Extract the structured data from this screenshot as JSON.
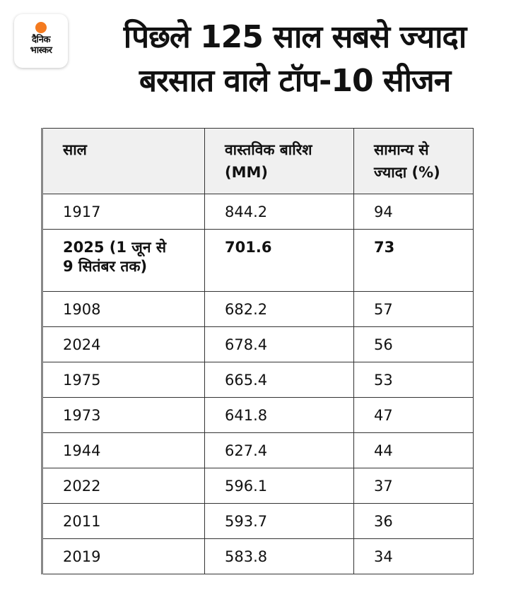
{
  "brand": {
    "line1": "दैनिक",
    "line2": "भास्कर",
    "accent": "#f47a1f"
  },
  "title": {
    "line1": "पिछले 125 साल सबसे ज्यादा",
    "line2": "बरसात वाले टॉप-10 सीजन"
  },
  "table": {
    "headers": [
      "साल",
      "वास्तविक बारिश (MM)",
      "सामान्य से ज्यादा (%)"
    ],
    "rows": [
      {
        "year": "1917",
        "rain": "844.2",
        "pct": "94"
      },
      {
        "year": "2025 (1 जून से 9 सितंबर तक)",
        "rain": "701.6",
        "pct": "73"
      },
      {
        "year": "1908",
        "rain": "682.2",
        "pct": "57"
      },
      {
        "year": "2024",
        "rain": "678.4",
        "pct": "56"
      },
      {
        "year": "1975",
        "rain": "665.4",
        "pct": "53"
      },
      {
        "year": "1973",
        "rain": "641.8",
        "pct": "47"
      },
      {
        "year": "1944",
        "rain": "627.4",
        "pct": "44"
      },
      {
        "year": "2022",
        "rain": "596.1",
        "pct": "37"
      },
      {
        "year": "2011",
        "rain": "593.7",
        "pct": "36"
      },
      {
        "year": "2019",
        "rain": "583.8",
        "pct": "34"
      }
    ]
  }
}
